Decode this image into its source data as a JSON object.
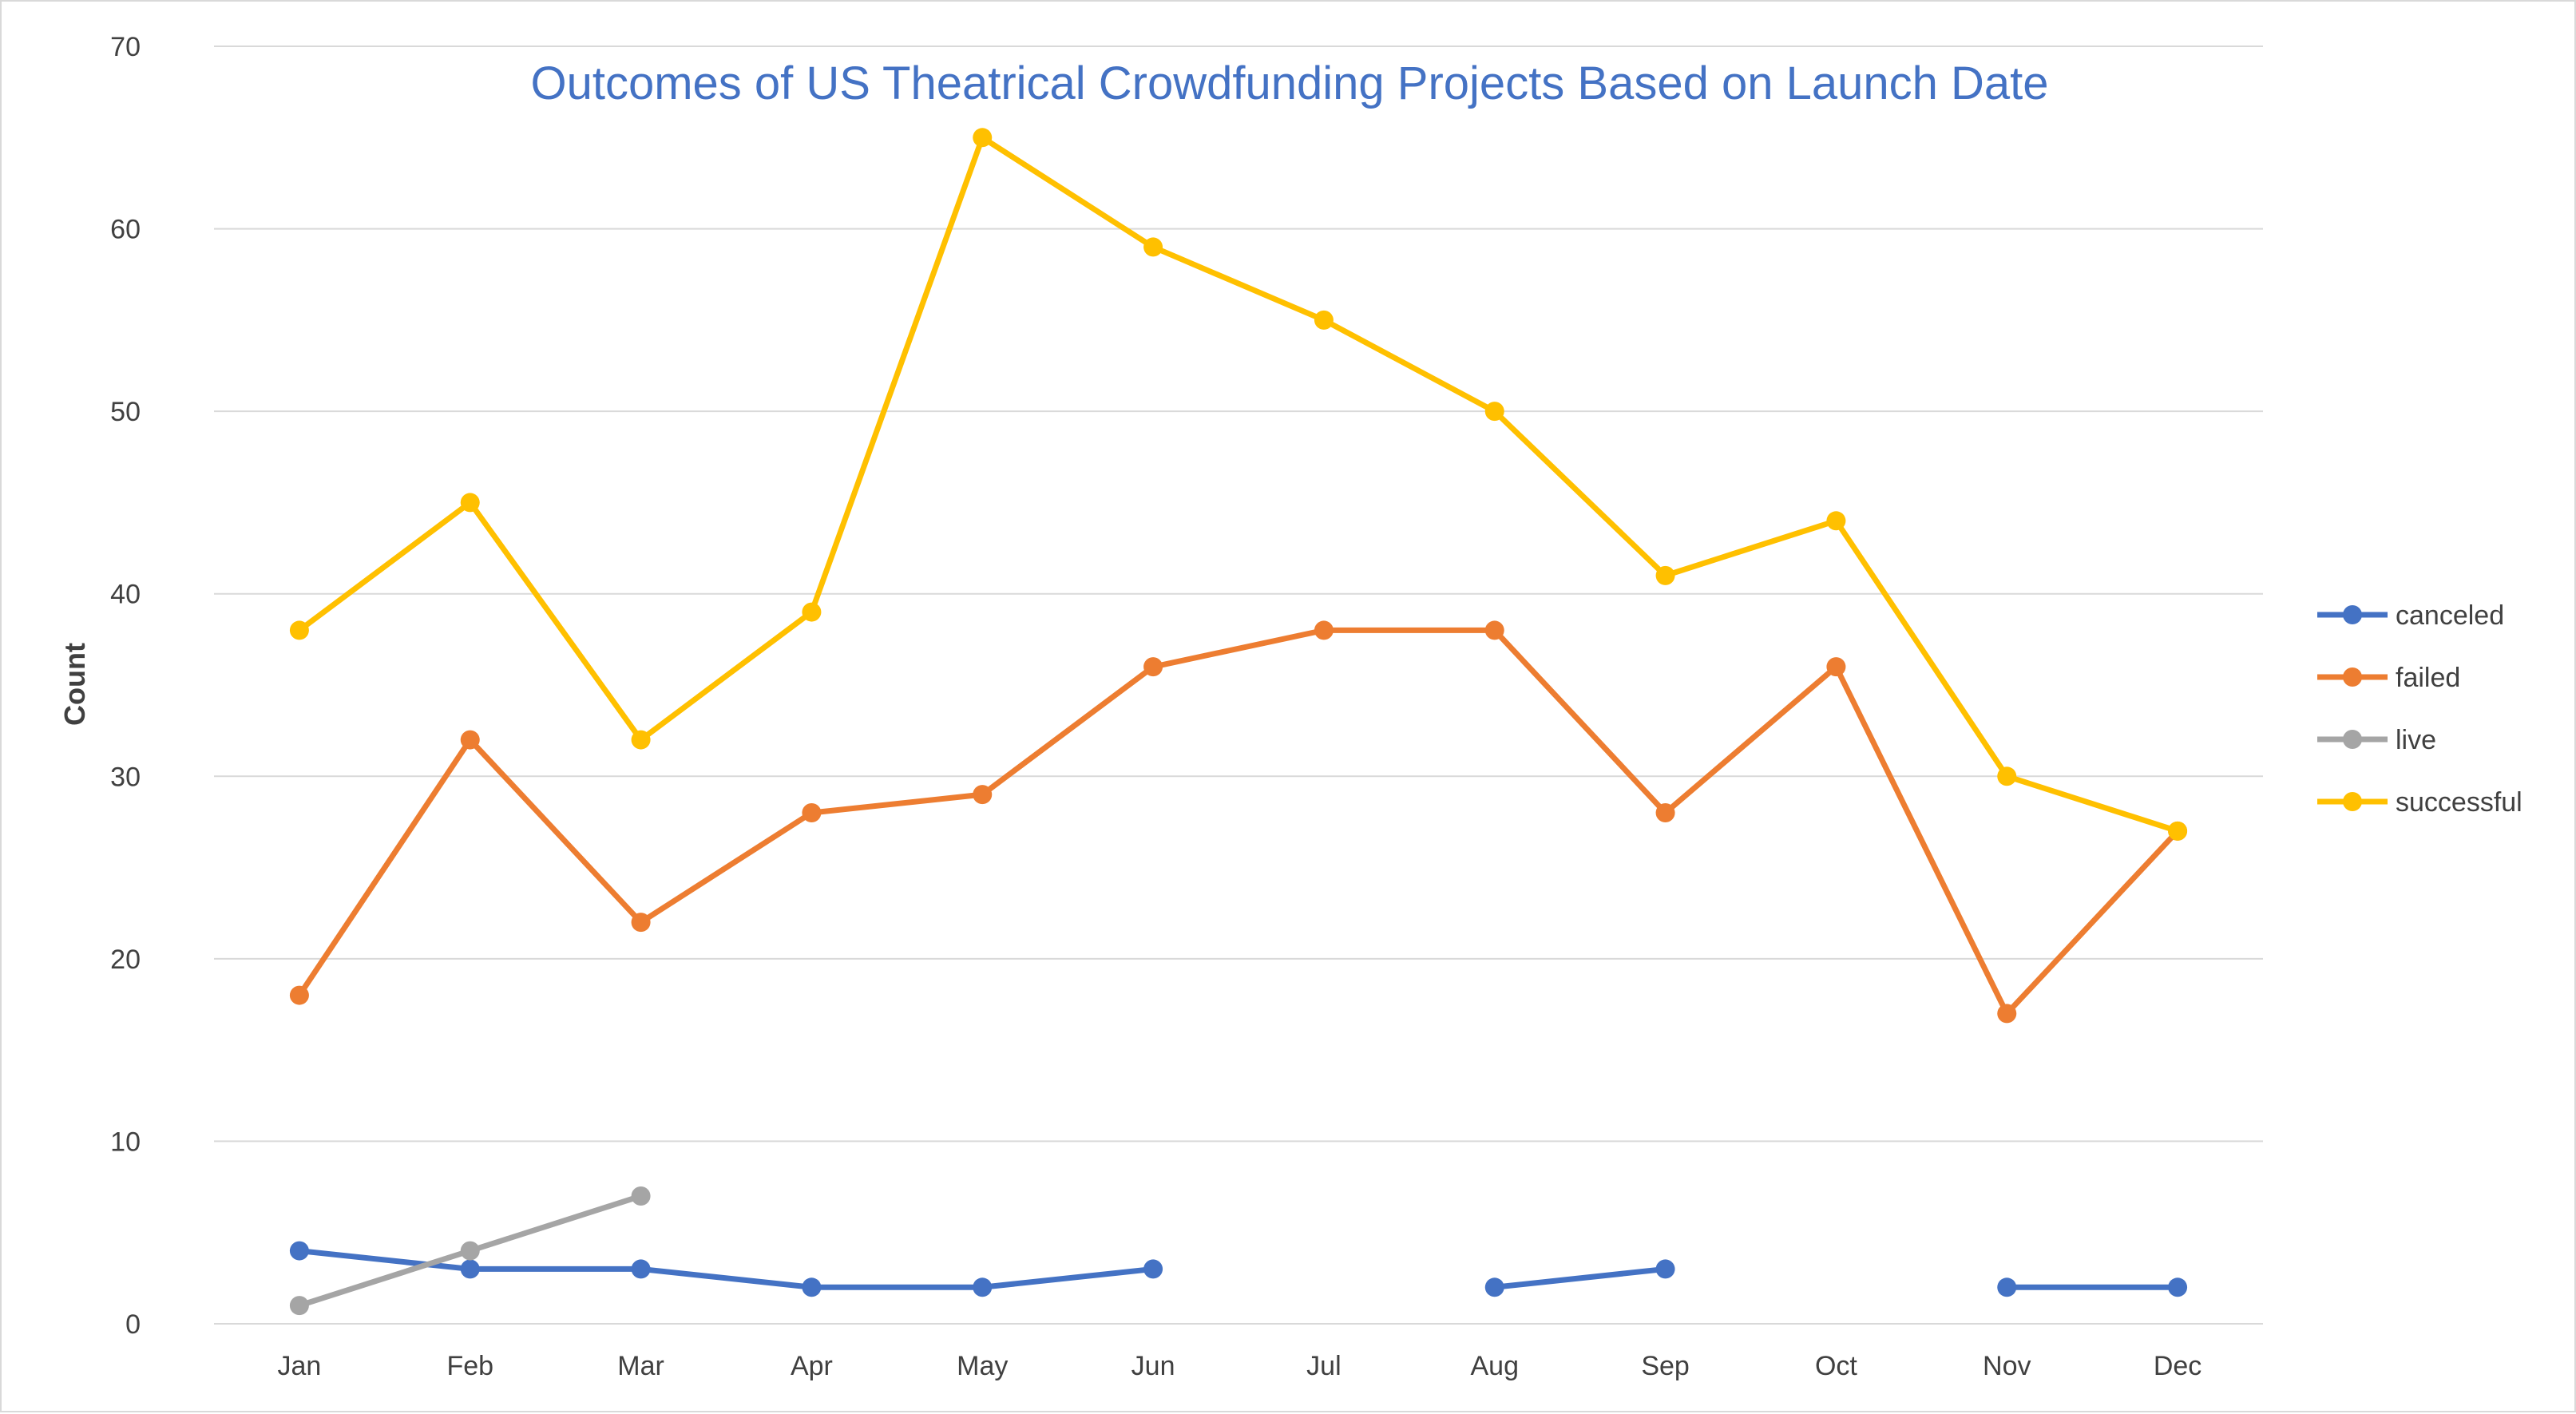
{
  "chart_data": {
    "type": "line",
    "title": "Outcomes of US Theatrical Crowdfunding Projects Based on Launch Date",
    "xlabel": "",
    "ylabel": "Count",
    "categories": [
      "Jan",
      "Feb",
      "Mar",
      "Apr",
      "May",
      "Jun",
      "Jul",
      "Aug",
      "Sep",
      "Oct",
      "Nov",
      "Dec"
    ],
    "ylim": [
      0,
      70
    ],
    "yticks": [
      "0",
      "10",
      "20",
      "30",
      "40",
      "50",
      "60",
      "70"
    ],
    "grid": true,
    "legend_position": "right",
    "series": [
      {
        "name": "canceled",
        "color": "#4472c4",
        "values": [
          4,
          3,
          3,
          2,
          2,
          3,
          null,
          2,
          3,
          null,
          2,
          2
        ]
      },
      {
        "name": "failed",
        "color": "#ed7d31",
        "values": [
          18,
          32,
          22,
          28,
          29,
          36,
          38,
          38,
          28,
          36,
          17,
          27
        ]
      },
      {
        "name": "live",
        "color": "#a5a5a5",
        "values": [
          1,
          4,
          7,
          null,
          null,
          null,
          null,
          null,
          null,
          null,
          null,
          null
        ]
      },
      {
        "name": "successful",
        "color": "#ffc000",
        "values": [
          38,
          45,
          32,
          39,
          65,
          59,
          55,
          50,
          41,
          44,
          30,
          27
        ]
      }
    ]
  }
}
